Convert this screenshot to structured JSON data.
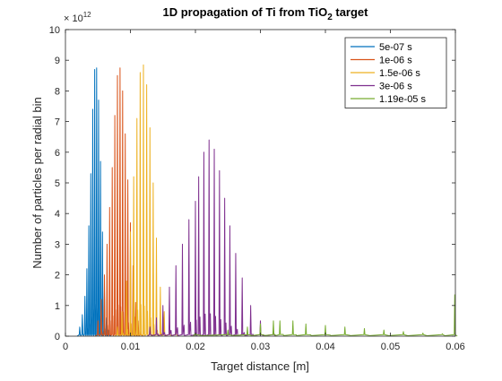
{
  "chart_data": {
    "type": "line",
    "title_main": "1D propagation of Ti from TiO",
    "title_sub": "2",
    "title_tail": " target",
    "xlabel": "Target distance [m]",
    "ylabel": "Number of particles per radial bin",
    "exponent_base": "× 10",
    "exponent_power": "12",
    "xlim": [
      0,
      0.06
    ],
    "ylim": [
      0,
      10
    ],
    "x_ticks": [
      0,
      0.01,
      0.02,
      0.03,
      0.04,
      0.05,
      0.06
    ],
    "x_tick_labels": [
      "0",
      "0.01",
      "0.02",
      "0.03",
      "0.04",
      "0.05",
      "0.06"
    ],
    "y_ticks": [
      0,
      1,
      2,
      3,
      4,
      5,
      6,
      7,
      8,
      9,
      10
    ],
    "y_tick_labels": [
      "0",
      "1",
      "2",
      "3",
      "4",
      "5",
      "6",
      "7",
      "8",
      "9",
      "10"
    ],
    "y_multiplier": 1000000000000.0,
    "grid": false,
    "legend_position": "top-right",
    "series": [
      {
        "name": "5e-07 s",
        "color": "#0072BD",
        "peaks": [
          [
            0.0022,
            0.3
          ],
          [
            0.0026,
            0.7
          ],
          [
            0.003,
            1.3
          ],
          [
            0.0033,
            2.2
          ],
          [
            0.0036,
            3.6
          ],
          [
            0.0039,
            5.3
          ],
          [
            0.0042,
            7.4
          ],
          [
            0.0045,
            8.7
          ],
          [
            0.0048,
            8.75
          ],
          [
            0.0051,
            7.7
          ],
          [
            0.0054,
            5.7
          ],
          [
            0.0057,
            3.4
          ],
          [
            0.006,
            1.5
          ],
          [
            0.0063,
            0.6
          ],
          [
            0.0066,
            0.2
          ]
        ]
      },
      {
        "name": "1e-06 s",
        "color": "#D95319",
        "peaks": [
          [
            0.005,
            0.5
          ],
          [
            0.0055,
            1.2
          ],
          [
            0.006,
            2.0
          ],
          [
            0.0064,
            3.0
          ],
          [
            0.0068,
            4.2
          ],
          [
            0.0072,
            5.5
          ],
          [
            0.0076,
            7.2
          ],
          [
            0.008,
            8.5
          ],
          [
            0.0084,
            8.75
          ],
          [
            0.0088,
            8.0
          ],
          [
            0.0092,
            6.6
          ],
          [
            0.0096,
            5.1
          ],
          [
            0.01,
            3.7
          ],
          [
            0.0104,
            2.3
          ],
          [
            0.0108,
            1.1
          ],
          [
            0.0112,
            0.5
          ],
          [
            0.0116,
            0.2
          ]
        ]
      },
      {
        "name": "1.5e-06 s",
        "color": "#EDB120",
        "peaks": [
          [
            0.008,
            0.3
          ],
          [
            0.0087,
            0.8
          ],
          [
            0.0094,
            1.8
          ],
          [
            0.01,
            3.4
          ],
          [
            0.0105,
            5.2
          ],
          [
            0.011,
            7.1
          ],
          [
            0.0115,
            8.6
          ],
          [
            0.012,
            8.85
          ],
          [
            0.0125,
            8.2
          ],
          [
            0.013,
            6.8
          ],
          [
            0.0135,
            5.0
          ],
          [
            0.014,
            3.2
          ],
          [
            0.0146,
            1.6
          ],
          [
            0.0152,
            0.8
          ],
          [
            0.016,
            0.4
          ],
          [
            0.017,
            0.2
          ]
        ]
      },
      {
        "name": "3e-06 s",
        "color": "#7E2F8E",
        "peaks": [
          [
            0.013,
            0.3
          ],
          [
            0.014,
            0.6
          ],
          [
            0.015,
            1.0
          ],
          [
            0.016,
            1.6
          ],
          [
            0.017,
            2.3
          ],
          [
            0.018,
            3.0
          ],
          [
            0.019,
            3.8
          ],
          [
            0.02,
            4.4
          ],
          [
            0.0205,
            5.2
          ],
          [
            0.0213,
            6.0
          ],
          [
            0.0221,
            6.4
          ],
          [
            0.0229,
            6.1
          ],
          [
            0.0237,
            5.4
          ],
          [
            0.0245,
            4.5
          ],
          [
            0.0253,
            3.6
          ],
          [
            0.0262,
            2.7
          ],
          [
            0.0272,
            1.9
          ],
          [
            0.0285,
            1.0
          ],
          [
            0.03,
            0.5
          ],
          [
            0.032,
            0.2
          ]
        ]
      },
      {
        "name": "1.19e-05 s",
        "color": "#77AC30",
        "peaks": [
          [
            0.02,
            0.1
          ],
          [
            0.025,
            0.2
          ],
          [
            0.028,
            0.3
          ],
          [
            0.03,
            0.4
          ],
          [
            0.032,
            0.5
          ],
          [
            0.033,
            0.5
          ],
          [
            0.035,
            0.5
          ],
          [
            0.037,
            0.4
          ],
          [
            0.04,
            0.35
          ],
          [
            0.043,
            0.3
          ],
          [
            0.046,
            0.25
          ],
          [
            0.049,
            0.2
          ],
          [
            0.052,
            0.15
          ],
          [
            0.055,
            0.1
          ],
          [
            0.058,
            0.08
          ],
          [
            0.0599,
            1.35
          ]
        ]
      }
    ]
  }
}
